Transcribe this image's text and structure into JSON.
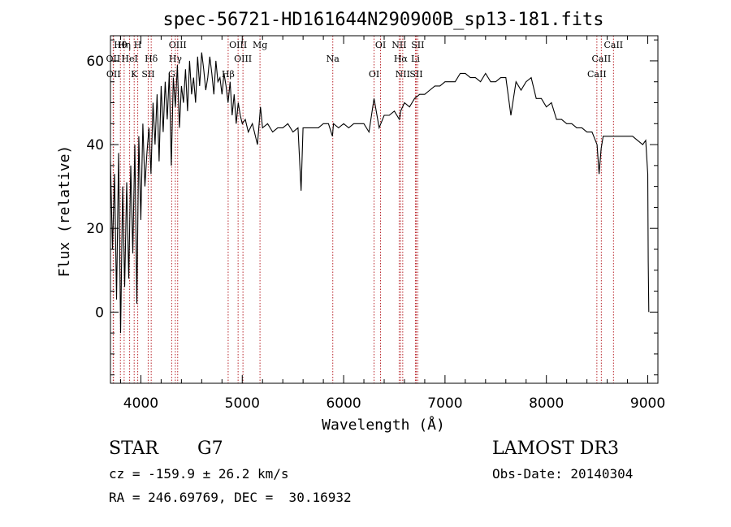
{
  "chart_data": {
    "type": "line",
    "title": "spec-56721-HD161644N290900B_sp13-181.fits",
    "xlabel": "Wavelength (Å)",
    "ylabel": "Flux (relative)",
    "xlim": [
      3700,
      9100
    ],
    "ylim": [
      -17,
      66
    ],
    "xticks": [
      4000,
      5000,
      6000,
      7000,
      8000,
      9000
    ],
    "xtick_labels": [
      "4000",
      "5000",
      "6000",
      "7000",
      "8000",
      "9000"
    ],
    "yticks": [
      0,
      20,
      40,
      60
    ],
    "ytick_labels": [
      "0",
      "20",
      "40",
      "60"
    ],
    "series": [
      {
        "name": "spectrum",
        "x": [
          3700,
          3720,
          3740,
          3760,
          3780,
          3800,
          3820,
          3840,
          3860,
          3880,
          3900,
          3920,
          3940,
          3960,
          3980,
          4000,
          4020,
          4040,
          4060,
          4080,
          4100,
          4120,
          4140,
          4160,
          4180,
          4200,
          4220,
          4240,
          4260,
          4280,
          4300,
          4320,
          4340,
          4360,
          4380,
          4400,
          4420,
          4440,
          4460,
          4480,
          4500,
          4520,
          4540,
          4560,
          4580,
          4600,
          4620,
          4640,
          4660,
          4680,
          4700,
          4720,
          4740,
          4760,
          4780,
          4800,
          4820,
          4840,
          4860,
          4880,
          4900,
          4920,
          4940,
          4960,
          4980,
          5000,
          5030,
          5060,
          5100,
          5150,
          5180,
          5200,
          5250,
          5300,
          5350,
          5400,
          5450,
          5500,
          5550,
          5580,
          5600,
          5650,
          5700,
          5750,
          5800,
          5850,
          5890,
          5900,
          5950,
          6000,
          6050,
          6100,
          6150,
          6200,
          6250,
          6300,
          6350,
          6400,
          6450,
          6500,
          6550,
          6563,
          6600,
          6650,
          6700,
          6750,
          6800,
          6850,
          6900,
          6950,
          7000,
          7050,
          7100,
          7150,
          7200,
          7250,
          7300,
          7350,
          7400,
          7450,
          7500,
          7550,
          7600,
          7650,
          7700,
          7750,
          7800,
          7850,
          7900,
          7950,
          8000,
          8050,
          8100,
          8150,
          8200,
          8250,
          8300,
          8350,
          8400,
          8450,
          8500,
          8520,
          8540,
          8560,
          8600,
          8650,
          8700,
          8750,
          8800,
          8850,
          8900,
          8950,
          8980,
          9000,
          9005,
          9010
        ],
        "y": [
          36,
          15,
          33,
          3,
          38,
          -5,
          30,
          6,
          31,
          8,
          35,
          14,
          40,
          2,
          42,
          22,
          45,
          30,
          38,
          44,
          33,
          50,
          40,
          52,
          36,
          54,
          43,
          55,
          46,
          57,
          35,
          56,
          49,
          59,
          44,
          54,
          50,
          58,
          48,
          60,
          52,
          56,
          50,
          61,
          54,
          62,
          58,
          53,
          56,
          61,
          57,
          52,
          60,
          55,
          56,
          52,
          57,
          54,
          50,
          55,
          47,
          52,
          45,
          50,
          47,
          45,
          46,
          43,
          45,
          40,
          49,
          44,
          45,
          43,
          44,
          44,
          45,
          43,
          44,
          29,
          44,
          44,
          44,
          44,
          45,
          45,
          42,
          45,
          44,
          45,
          44,
          45,
          45,
          45,
          43,
          51,
          44,
          47,
          47,
          48,
          46,
          48,
          50,
          49,
          51,
          52,
          52,
          53,
          54,
          54,
          55,
          55,
          55,
          57,
          57,
          56,
          56,
          55,
          57,
          55,
          55,
          56,
          56,
          47,
          55,
          53,
          55,
          56,
          51,
          51,
          49,
          50,
          46,
          46,
          45,
          45,
          44,
          44,
          43,
          43,
          40,
          33,
          39,
          42,
          42,
          42,
          42,
          42,
          42,
          42,
          41,
          40,
          41,
          33,
          12,
          0
        ]
      }
    ],
    "line_marks": [
      {
        "label": "Hθ",
        "x": 3798
      },
      {
        "label": "OII",
        "x": 3727
      },
      {
        "label": "OII",
        "x": 3730
      },
      {
        "label": "Hη",
        "x": 3835
      },
      {
        "label": "HeI",
        "x": 3889
      },
      {
        "label": "K",
        "x": 3934
      },
      {
        "label": "H",
        "x": 3969
      },
      {
        "label": "Hδ",
        "x": 4102
      },
      {
        "label": "SII",
        "x": 4072
      },
      {
        "label": "OIII",
        "x": 4363
      },
      {
        "label": "Hγ",
        "x": 4340
      },
      {
        "label": "G",
        "x": 4304
      },
      {
        "label": "OIII",
        "x": 4959
      },
      {
        "label": "OIII",
        "x": 5007
      },
      {
        "label": "Hβ",
        "x": 4861
      },
      {
        "label": "Mg",
        "x": 5175
      },
      {
        "label": "Na",
        "x": 5893
      },
      {
        "label": "OI",
        "x": 6300
      },
      {
        "label": "OI",
        "x": 6364
      },
      {
        "label": "Hα",
        "x": 6563
      },
      {
        "label": "SII",
        "x": 6716
      },
      {
        "label": "NII",
        "x": 6548
      },
      {
        "label": "Li",
        "x": 6708
      },
      {
        "label": "NII",
        "x": 6583
      },
      {
        "label": "SII",
        "x": 6731
      },
      {
        "label": "CaII",
        "x": 8542
      },
      {
        "label": "CaII",
        "x": 8498
      },
      {
        "label": "CaII",
        "x": 8662
      }
    ]
  },
  "info": {
    "class_label": "STAR",
    "subclass": "G7",
    "survey": "LAMOST DR3",
    "cz_line": "cz = -159.9 ± 26.2 km/s",
    "obs_date_line": "Obs-Date: 20140304",
    "radec_line": "RA = 246.69769, DEC =  30.16932"
  },
  "colors": {
    "line_marker": "#b8242a",
    "spectrum": "#000000",
    "axes": "#000000"
  }
}
